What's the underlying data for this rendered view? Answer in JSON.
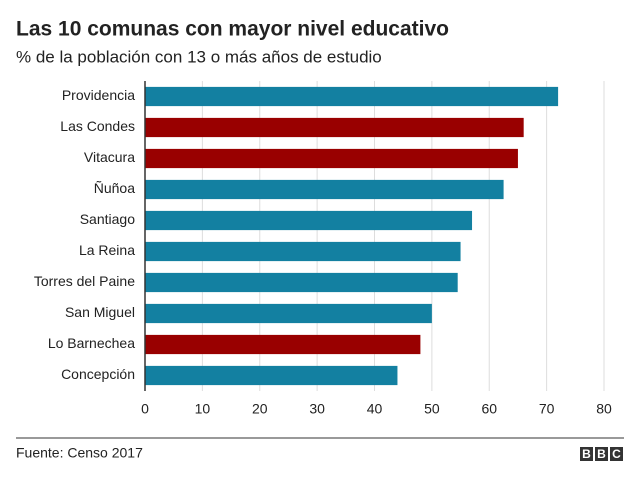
{
  "chart_data": {
    "type": "barh",
    "title": "Las 10 comunas con mayor nivel educativo",
    "subtitle": "% de la población con 13 o más años de estudio",
    "categories": [
      "Providencia",
      "Las Condes",
      "Vitacura",
      "Ñuñoa",
      "Santiago",
      "La Reina",
      "Torres del Paine",
      "San Miguel",
      "Lo Barnechea",
      "Concepción"
    ],
    "values": [
      72,
      66,
      65,
      62.5,
      57,
      55,
      54.5,
      50,
      48,
      44
    ],
    "colors": [
      "#1380a1",
      "#990000",
      "#990000",
      "#1380a1",
      "#1380a1",
      "#1380a1",
      "#1380a1",
      "#1380a1",
      "#990000",
      "#1380a1"
    ],
    "xlim": [
      0,
      80
    ],
    "xticks": [
      0,
      10,
      20,
      30,
      40,
      50,
      60,
      70,
      80
    ],
    "grid": true,
    "source": "Fuente: Censo 2017",
    "logo": [
      "B",
      "B",
      "C"
    ]
  }
}
